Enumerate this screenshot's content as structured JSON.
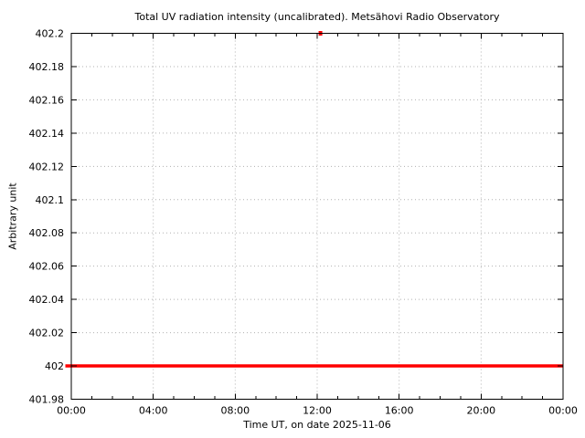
{
  "chart_data": {
    "type": "line",
    "title": "Total UV radiation intensity (uncalibrated). Metsähovi Radio Observatory",
    "xlabel": "Time UT, on date 2025-11-06",
    "ylabel": "Arbitrary unit",
    "ylim": [
      401.98,
      402.2
    ],
    "y_tick_step": 0.02,
    "y_tick_labels": [
      "401.98",
      "402",
      "402.02",
      "402.04",
      "402.06",
      "402.08",
      "402.1",
      "402.12",
      "402.14",
      "402.16",
      "402.18",
      "402.2"
    ],
    "x_range_hours": [
      0,
      24
    ],
    "x_major_interval_hours": 4,
    "x_minor_interval_hours": 1,
    "x_tick_labels": [
      "00:00",
      "04:00",
      "08:00",
      "12:00",
      "16:00",
      "20:00",
      "00:00"
    ],
    "grid": true,
    "legend": "none",
    "series": [
      {
        "name": "total_uv_intensity",
        "style": "thick-constant-line",
        "value": 402.0,
        "x_span_hours": [
          0,
          24
        ],
        "color": "#ff0000"
      }
    ],
    "outlier_points": [
      {
        "x_hours": 12.16,
        "note": "off-scale spike clipped at top plot border",
        "color": "#ff0000"
      }
    ],
    "colors": {
      "background": "#ffffff",
      "axis": "#000000",
      "grid": "#b0b0b0",
      "text": "#000000",
      "series": "#ff0000"
    }
  }
}
